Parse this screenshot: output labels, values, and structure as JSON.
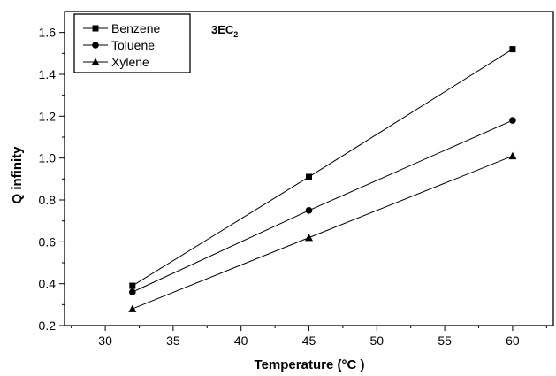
{
  "chart_data": {
    "type": "line",
    "title": "",
    "annotation": {
      "main": "3EC",
      "sub": "2"
    },
    "xlabel": "Temperature (°C )",
    "ylabel": "Q infinity",
    "xlim": [
      27,
      63
    ],
    "ylim": [
      0.2,
      1.7
    ],
    "xticks": [
      30,
      35,
      40,
      45,
      50,
      55,
      60
    ],
    "yticks": [
      0.2,
      0.4,
      0.6,
      0.8,
      1.0,
      1.2,
      1.4,
      1.6
    ],
    "ytick_labels": [
      "0.2",
      "0.4",
      "0.6",
      "0.8",
      "1.0",
      "1.2",
      "1.4",
      "1.6"
    ],
    "grid": false,
    "legend_position": "top-left",
    "x": [
      32,
      45,
      60
    ],
    "series": [
      {
        "name": "Benzene",
        "marker": "square",
        "values": [
          0.39,
          0.91,
          1.52
        ]
      },
      {
        "name": "Toluene",
        "marker": "circle",
        "values": [
          0.36,
          0.75,
          1.18
        ]
      },
      {
        "name": "Xylene",
        "marker": "triangle",
        "values": [
          0.28,
          0.62,
          1.01
        ]
      }
    ],
    "colors": {
      "line": "#000000",
      "marker": "#000000"
    }
  }
}
